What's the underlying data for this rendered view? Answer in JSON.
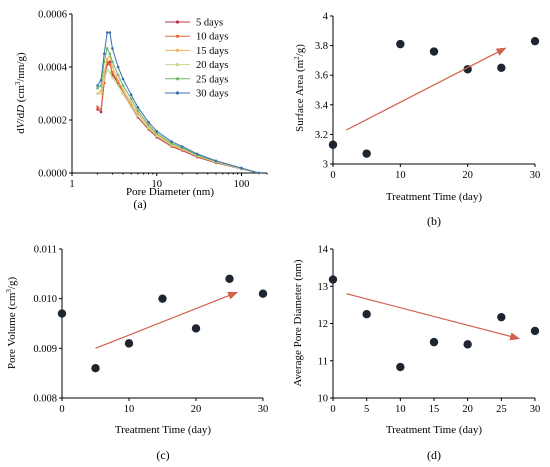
{
  "figure": {
    "colors": {
      "axis": "#000000",
      "marker": "#1c2530",
      "trend_arrow": "#d2604d",
      "series": [
        "#c0304a",
        "#e26a3a",
        "#f0b45a",
        "#c6d78f",
        "#6bb86e",
        "#3a6fb0"
      ]
    }
  },
  "chart_data": [
    {
      "id": "a",
      "type": "line",
      "caption": "(a)",
      "title": "",
      "xlabel": "Pore Diameter (nm)",
      "ylabel_parts": [
        "d",
        "V",
        "/d",
        "D",
        " (cm",
        "3",
        "/nm/g)"
      ],
      "xscale": "log",
      "xlim": [
        1,
        200
      ],
      "ylim": [
        0,
        0.0006
      ],
      "xticks": [
        1,
        10,
        100
      ],
      "xtick_labels": [
        "1",
        "10",
        "100"
      ],
      "yticks": [
        0,
        0.0002,
        0.0004,
        0.0006
      ],
      "ytick_labels": [
        "0.0000",
        "0.0002",
        "0.0004",
        "0.0006"
      ],
      "legend_position": "top-right",
      "x": [
        2.0,
        2.2,
        2.4,
        2.6,
        2.8,
        3.0,
        3.5,
        4,
        5,
        6,
        8,
        10,
        15,
        20,
        30,
        50,
        100,
        160
      ],
      "series": [
        {
          "name": "5 days",
          "values": [
            0.00024,
            0.00023,
            0.00034,
            0.00041,
            0.00042,
            0.00037,
            0.00034,
            0.0003,
            0.00025,
            0.00021,
            0.000165,
            0.000135,
            0.0001,
            8.5e-05,
            6e-05,
            3.8e-05,
            1.5e-05,
            0.0
          ]
        },
        {
          "name": "10 days",
          "values": [
            0.00025,
            0.00024,
            0.00035,
            0.00042,
            0.00041,
            0.00038,
            0.000345,
            0.000305,
            0.000255,
            0.000215,
            0.000168,
            0.000138,
            0.000102,
            8.7e-05,
            6.2e-05,
            4e-05,
            1.6e-05,
            0.0
          ]
        },
        {
          "name": "15 days",
          "values": [
            0.0003,
            0.00031,
            0.00038,
            0.00043,
            0.00044,
            0.0004,
            0.00035,
            0.000315,
            0.000265,
            0.000225,
            0.000175,
            0.000145,
            0.000108,
            9.2e-05,
            6.6e-05,
            4.2e-05,
            1.7e-05,
            0.0
          ]
        },
        {
          "name": "20 days",
          "values": [
            0.0003,
            0.0003,
            0.00035,
            0.00039,
            0.00038,
            0.00036,
            0.00033,
            0.0003,
            0.00025,
            0.000215,
            0.00017,
            0.00014,
            0.000105,
            9e-05,
            6.4e-05,
            4.1e-05,
            1.6e-05,
            0.0
          ]
        },
        {
          "name": "25 days",
          "values": [
            0.00032,
            0.00033,
            0.00042,
            0.00047,
            0.00045,
            0.00042,
            0.00037,
            0.00033,
            0.00028,
            0.000235,
            0.000182,
            0.00015,
            0.000112,
            9.5e-05,
            6.8e-05,
            4.4e-05,
            1.8e-05,
            0.0
          ]
        },
        {
          "name": "30 days",
          "values": [
            0.00033,
            0.00035,
            0.00045,
            0.00053,
            0.00053,
            0.00047,
            0.0004,
            0.000355,
            0.000295,
            0.000248,
            0.000192,
            0.000158,
            0.000118,
            0.0001,
            7.2e-05,
            4.6e-05,
            1.9e-05,
            0.0
          ]
        }
      ]
    },
    {
      "id": "b",
      "type": "scatter",
      "caption": "(b)",
      "title": "",
      "xlabel": "Treatment Time (day)",
      "ylabel_parts": [
        "Surface Area (m",
        "2",
        "/g)"
      ],
      "xlim": [
        0,
        30
      ],
      "ylim": [
        3,
        4
      ],
      "xticks": [
        0,
        10,
        20,
        30
      ],
      "xtick_labels": [
        "0",
        "10",
        "20",
        "30"
      ],
      "yticks": [
        3,
        3.2,
        3.4,
        3.6,
        3.8,
        4
      ],
      "ytick_labels": [
        "3",
        "3.2",
        "3.4",
        "3.6",
        "3.8",
        "4"
      ],
      "x": [
        0,
        5,
        10,
        15,
        20,
        25,
        30
      ],
      "y": [
        3.13,
        3.07,
        3.81,
        3.76,
        3.64,
        3.65,
        3.83
      ],
      "trend_arrow": {
        "from": [
          2,
          3.23
        ],
        "to": [
          25.5,
          3.78
        ]
      }
    },
    {
      "id": "c",
      "type": "scatter",
      "caption": "(c)",
      "title": "",
      "xlabel": "Treatment Time (day)",
      "ylabel_parts": [
        "Pore Volume (cm",
        "3",
        "/g)"
      ],
      "xlim": [
        0,
        30
      ],
      "ylim": [
        0.008,
        0.011
      ],
      "xticks": [
        0,
        10,
        20,
        30
      ],
      "xtick_labels": [
        "0",
        "10",
        "20",
        "30"
      ],
      "yticks": [
        0.008,
        0.009,
        0.01,
        0.011
      ],
      "ytick_labels": [
        "0.008",
        "0.009",
        "0.010",
        "0.011"
      ],
      "x": [
        0,
        5,
        10,
        15,
        20,
        25,
        30
      ],
      "y": [
        0.0097,
        0.0086,
        0.0091,
        0.01,
        0.0094,
        0.0104,
        0.0101
      ],
      "trend_arrow": {
        "from": [
          5,
          0.009
        ],
        "to": [
          26,
          0.01012
        ]
      }
    },
    {
      "id": "d",
      "type": "scatter",
      "caption": "(d)",
      "title": "",
      "xlabel": "Treatment Time (day)",
      "ylabel_parts": [
        "Average Pore Diameter (nm)"
      ],
      "xlim": [
        0,
        30
      ],
      "ylim": [
        10,
        14
      ],
      "xticks": [
        0,
        5,
        10,
        15,
        20,
        25,
        30
      ],
      "xtick_labels": [
        "0",
        "5",
        "10",
        "15",
        "20",
        "25",
        "30"
      ],
      "yticks": [
        10,
        11,
        12,
        13,
        14
      ],
      "ytick_labels": [
        "10",
        "11",
        "12",
        "13",
        "14"
      ],
      "x": [
        0,
        5,
        10,
        15,
        20,
        25,
        30
      ],
      "y": [
        13.18,
        12.25,
        10.83,
        11.5,
        11.44,
        12.17,
        11.8
      ],
      "trend_arrow": {
        "from": [
          2,
          12.8
        ],
        "to": [
          27.5,
          11.6
        ]
      }
    }
  ]
}
